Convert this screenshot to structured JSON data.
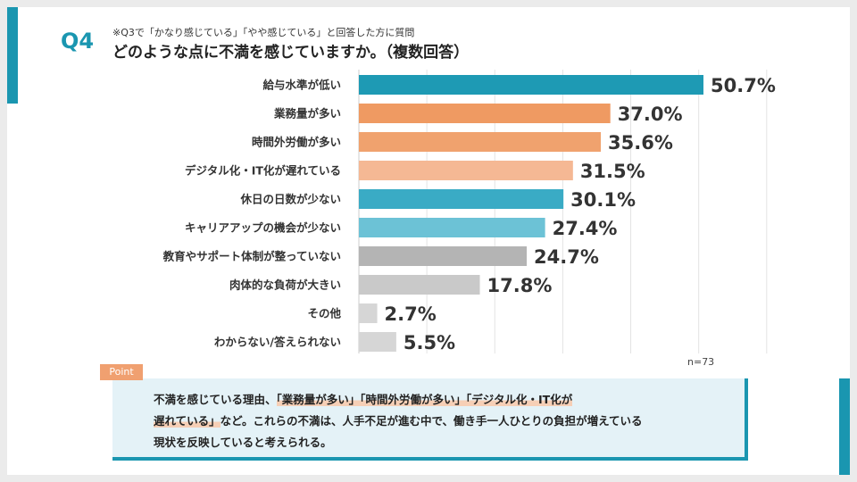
{
  "header": {
    "question_label": "Q4",
    "subtitle": "※Q3で「かなり感じている」「やや感じている」と回答した方に質問",
    "title": "どのような点に不満を感じていますか。（複数回答）"
  },
  "chart_data": {
    "type": "bar",
    "orientation": "horizontal",
    "categories": [
      "給与水準が低い",
      "業務量が多い",
      "時間外労働が多い",
      "デジタル化・IT化が遅れている",
      "休日の日数が少ない",
      "キャリアアップの機会が少ない",
      "教育やサポート体制が整っていない",
      "肉体的な負荷が大きい",
      "その他",
      "わからない/答えられない"
    ],
    "values": [
      50.7,
      37.0,
      35.6,
      31.5,
      30.1,
      27.4,
      24.7,
      17.8,
      2.7,
      5.5
    ],
    "value_labels": [
      "50.7%",
      "37.0%",
      "35.6%",
      "31.5%",
      "30.1%",
      "27.4%",
      "24.7%",
      "17.8%",
      "2.7%",
      "5.5%"
    ],
    "colors": [
      "#1e9ab4",
      "#ef9a62",
      "#f0a26e",
      "#f5b894",
      "#3aabc5",
      "#6cc2d6",
      "#b4b4b4",
      "#c9c9c9",
      "#d6d6d6",
      "#d6d6d6"
    ],
    "xlim": [
      0,
      60
    ],
    "grid": true,
    "n_label": "n=73"
  },
  "point": {
    "tag": "Point",
    "text_1": "不満を感じている理由、",
    "hl_1": "「業務量が多い」「時間外労働が多い」「デジタル化・IT化が",
    "hl_2": "遅れている」",
    "text_2": "など。これらの不満は、人手不足が進む中で、働き手一人ひとりの負担が増えている",
    "text_3": "現状を反映していると考えられる。"
  }
}
